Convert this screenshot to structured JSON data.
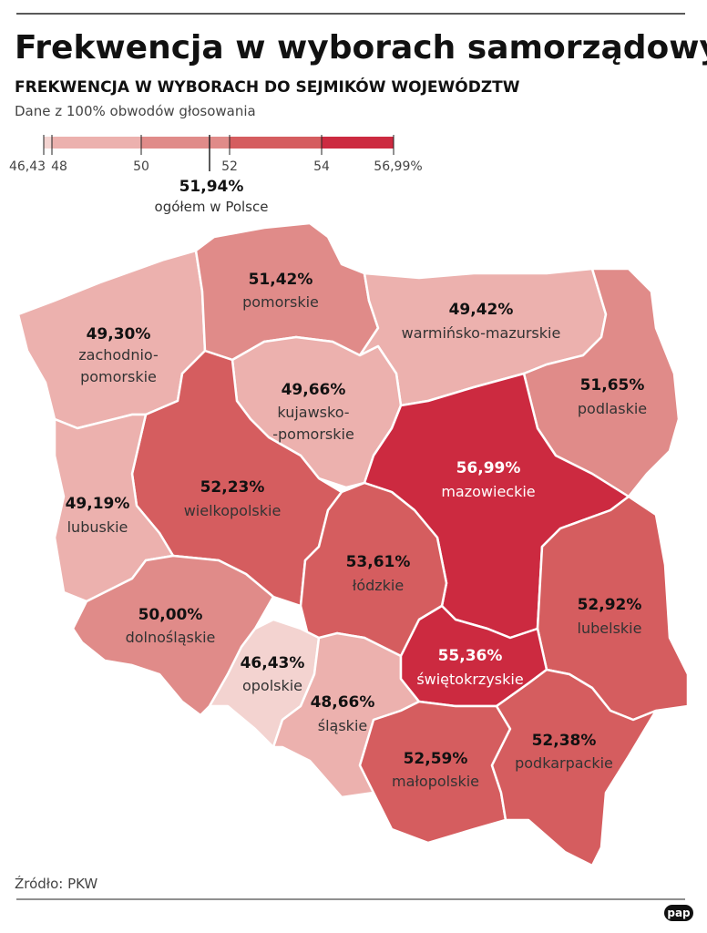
{
  "header": {
    "title": "Frekwencja w wyborach samorządowych",
    "subtitle": "FREKWENCJA W WYBORACH DO SEJMIKÓW WOJEWÓDZTW",
    "note": "Dane z 100% obwodów głosowania"
  },
  "legend": {
    "ticks": [
      "46,43",
      "48",
      "50",
      "52",
      "54",
      "56,99%"
    ],
    "colors": [
      "#f3d3d0",
      "#ecb1ae",
      "#e08b89",
      "#d55d5f",
      "#cc2a40"
    ]
  },
  "national": {
    "value": "51,94%",
    "label": "ogółem w Polsce"
  },
  "regions": [
    {
      "value": "49,30%",
      "name_line1": "zachodnio-",
      "name_line2": "pomorskie",
      "color": "#ecb1ae"
    },
    {
      "value": "51,42%",
      "name_line1": "pomorskie",
      "color": "#e08b89"
    },
    {
      "value": "49,42%",
      "name_line1": "warmińsko-mazurskie",
      "color": "#ecb1ae"
    },
    {
      "value": "51,65%",
      "name_line1": "podlaskie",
      "color": "#e08b89"
    },
    {
      "value": "49,66%",
      "name_line1": "kujawsko-",
      "name_line2": "-pomorskie",
      "color": "#ecb1ae"
    },
    {
      "value": "52,23%",
      "name_line1": "wielkopolskie",
      "color": "#d55d5f"
    },
    {
      "value": "49,19%",
      "name_line1": "lubuskie",
      "color": "#ecb1ae"
    },
    {
      "value": "56,99%",
      "name_line1": "mazowieckie",
      "color": "#cc2a40"
    },
    {
      "value": "53,61%",
      "name_line1": "łódzkie",
      "color": "#d55d5f"
    },
    {
      "value": "52,92%",
      "name_line1": "lubelskie",
      "color": "#d55d5f"
    },
    {
      "value": "50,00%",
      "name_line1": "dolnośląskie",
      "color": "#e08b89"
    },
    {
      "value": "46,43%",
      "name_line1": "opolskie",
      "color": "#f3d3d0"
    },
    {
      "value": "48,66%",
      "name_line1": "śląskie",
      "color": "#ecb1ae"
    },
    {
      "value": "55,36%",
      "name_line1": "świętokrzyskie",
      "color": "#cc2a40"
    },
    {
      "value": "52,59%",
      "name_line1": "małopolskie",
      "color": "#d55d5f"
    },
    {
      "value": "52,38%",
      "name_line1": "podkarpackie",
      "color": "#d55d5f"
    }
  ],
  "footer": {
    "source": "Źródło: PKW",
    "logo": "pap"
  }
}
